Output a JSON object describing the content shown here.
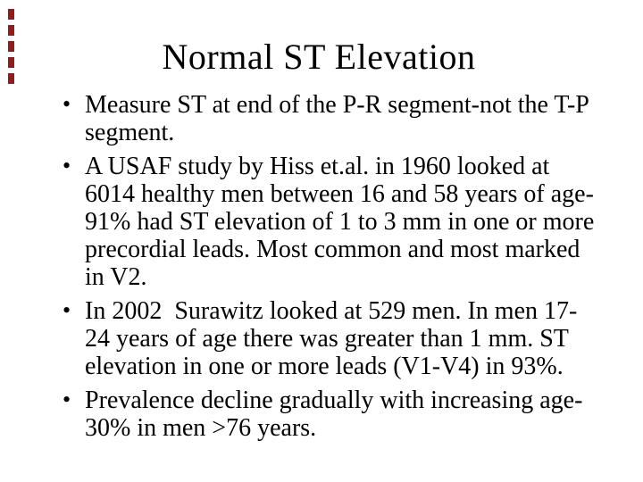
{
  "slide": {
    "title": "Normal ST Elevation",
    "bullet_glyph": "•",
    "bullets": [
      {
        "lines": [
          "Measure ST at end of the P-R segment-not the T-P",
          "segment."
        ]
      },
      {
        "lines": [
          "A USAF study by Hiss et.al. in 1960 looked at",
          "6014 healthy men between 16 and 58 years of age-",
          "91% had ST elevation of 1 to 3 mm in one or more",
          "precordial leads. Most common and most marked",
          "in V2."
        ]
      },
      {
        "lines": [
          "In 2002  Surawitz looked at 529 men. In men 17-",
          "24 years of age there was greater than 1 mm. ST",
          "elevation in one or more leads (V1-V4) in 93%."
        ]
      },
      {
        "lines": [
          "Prevalence decline gradually with increasing age-",
          "30% in men >76 years."
        ]
      }
    ],
    "colors": {
      "text": "#000000",
      "background": "#ffffff",
      "edge_marks": "#8b1f1f"
    }
  }
}
